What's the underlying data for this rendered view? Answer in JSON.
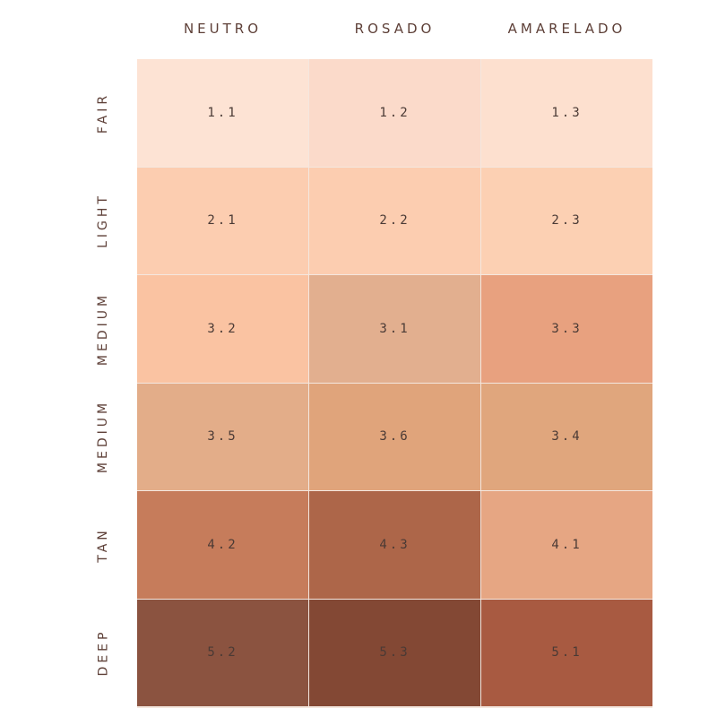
{
  "columns": [
    "NEUTRO",
    "ROSADO",
    "AMARELADO"
  ],
  "rows": [
    {
      "label": "FAIR",
      "cells": [
        {
          "shade": "1.1",
          "color": "#fde3d4"
        },
        {
          "shade": "1.2",
          "color": "#fbdaca"
        },
        {
          "shade": "1.3",
          "color": "#fde0cf"
        }
      ]
    },
    {
      "label": "LIGHT",
      "cells": [
        {
          "shade": "2.1",
          "color": "#fccdb0"
        },
        {
          "shade": "2.2",
          "color": "#fccdb0"
        },
        {
          "shade": "2.3",
          "color": "#fcd0b3"
        }
      ]
    },
    {
      "label": "MEDIUM",
      "cells": [
        {
          "shade": "3.2",
          "color": "#fac3a2"
        },
        {
          "shade": "3.1",
          "color": "#e2af8f"
        },
        {
          "shade": "3.3",
          "color": "#e8a17f"
        }
      ]
    },
    {
      "label": "MEDIUM",
      "cells": [
        {
          "shade": "3.5",
          "color": "#e3ad89"
        },
        {
          "shade": "3.6",
          "color": "#e0a47b"
        },
        {
          "shade": "3.4",
          "color": "#e0a67d"
        }
      ]
    },
    {
      "label": "TAN",
      "cells": [
        {
          "shade": "4.2",
          "color": "#c67c5b"
        },
        {
          "shade": "4.3",
          "color": "#ad6649"
        },
        {
          "shade": "4.1",
          "color": "#e6a683"
        }
      ]
    },
    {
      "label": "DEEP",
      "cells": [
        {
          "shade": "5.2",
          "color": "#8b5340"
        },
        {
          "shade": "5.3",
          "color": "#834834"
        },
        {
          "shade": "5.1",
          "color": "#a85a41"
        }
      ]
    }
  ]
}
